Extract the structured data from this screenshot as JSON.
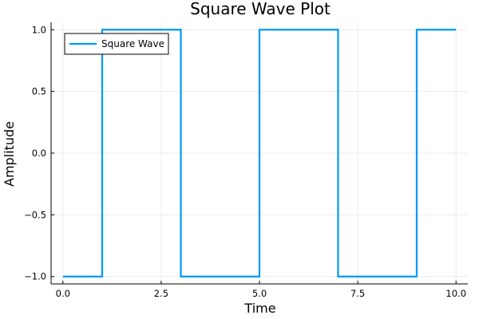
{
  "chart_data": {
    "type": "line",
    "title": "Square Wave Plot",
    "xlabel": "Time",
    "ylabel": "Amplitude",
    "xlim": [
      -0.3,
      10.3
    ],
    "ylim": [
      -1.06,
      1.06
    ],
    "x_ticks": [
      0.0,
      2.5,
      5.0,
      7.5,
      10.0
    ],
    "x_tick_labels": [
      "0.0",
      "2.5",
      "5.0",
      "7.5",
      "10.0"
    ],
    "y_ticks": [
      1.0,
      0.5,
      0.0,
      -0.5,
      -1.0
    ],
    "y_tick_labels": [
      "1.0",
      "0.5",
      "0.0",
      "−0.5",
      "−1.0"
    ],
    "grid": true,
    "legend_position": "top-left",
    "series": [
      {
        "name": "Square Wave",
        "color": "#009af9",
        "x": [
          0,
          1,
          1,
          3,
          3,
          5,
          5,
          7,
          7,
          9,
          9,
          10
        ],
        "y": [
          -1,
          -1,
          1,
          1,
          -1,
          -1,
          1,
          1,
          -1,
          -1,
          1,
          1
        ]
      }
    ]
  }
}
